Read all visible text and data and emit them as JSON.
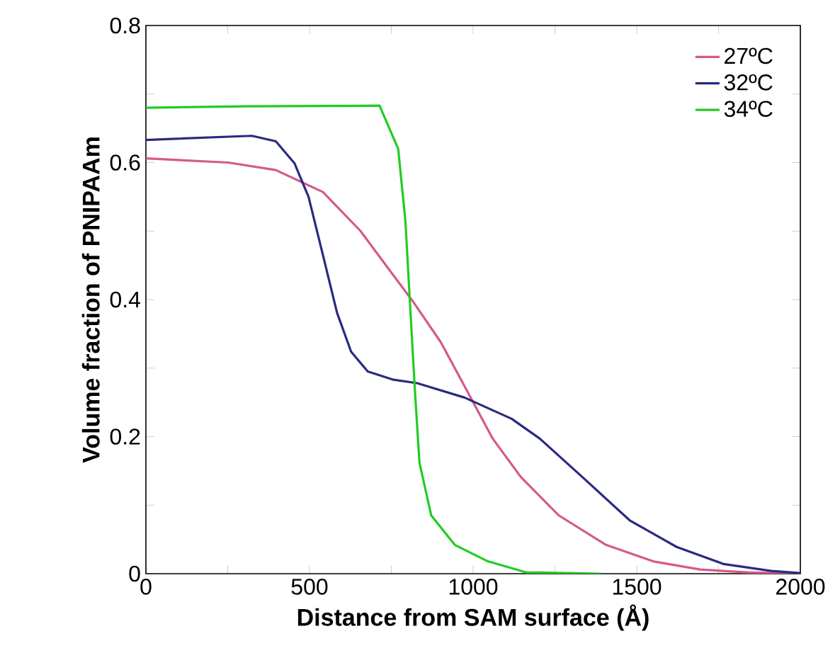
{
  "chart_data": {
    "type": "line",
    "xlabel": "Distance from SAM surface (Å)",
    "ylabel": "Volume fraction of PNIPAAm",
    "xlim": [
      0,
      2000
    ],
    "ylim": [
      0,
      0.8
    ],
    "xticks": [
      0,
      {
        "value": 250,
        "label": null
      },
      500,
      {
        "value": 750,
        "label": null
      },
      1000,
      {
        "value": 1250,
        "label": null
      },
      1500,
      {
        "value": 1750,
        "label": null
      },
      2000
    ],
    "yticks": [
      0,
      {
        "value": 0.1,
        "label": null
      },
      0.2,
      {
        "value": 0.3,
        "label": null
      },
      0.4,
      {
        "value": 0.5,
        "label": null
      },
      0.6,
      {
        "value": 0.7,
        "label": null
      },
      0.8
    ],
    "grid": false,
    "legend": "top right",
    "marker": "none",
    "line_style": "solid",
    "series": [
      {
        "name": "27ºC",
        "color": "#d45a8a",
        "x": [
          0,
          252,
          397,
          541,
          656,
          743,
          815,
          901,
          988,
          1060,
          1146,
          1262,
          1406,
          1550,
          1694,
          1839,
          2000
        ],
        "values": [
          0.606,
          0.6,
          0.589,
          0.557,
          0.5,
          0.444,
          0.398,
          0.338,
          0.261,
          0.197,
          0.141,
          0.085,
          0.042,
          0.018,
          0.006,
          0.002,
          0
        ]
      },
      {
        "name": "32ºC",
        "color": "#2a2a80",
        "x": [
          0,
          324,
          397,
          454,
          497,
          541,
          584,
          627,
          678,
          757,
          829,
          974,
          1118,
          1204,
          1334,
          1478,
          1622,
          1766,
          1911,
          2000
        ],
        "values": [
          0.633,
          0.639,
          0.631,
          0.599,
          0.55,
          0.465,
          0.381,
          0.324,
          0.295,
          0.283,
          0.278,
          0.257,
          0.226,
          0.197,
          0.141,
          0.078,
          0.039,
          0.014,
          0.004,
          0.001
        ]
      },
      {
        "name": "34ºC",
        "color": "#22cc22",
        "x": [
          0,
          300,
          714,
          771,
          793,
          807,
          822,
          836,
          872,
          944,
          1045,
          1161,
          1391
        ],
        "values": [
          0.68,
          0.682,
          0.683,
          0.62,
          0.515,
          0.395,
          0.268,
          0.162,
          0.085,
          0.042,
          0.018,
          0.002,
          0
        ]
      }
    ]
  }
}
